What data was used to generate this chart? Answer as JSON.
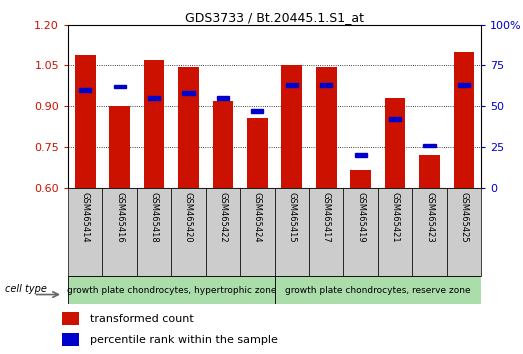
{
  "title": "GDS3733 / Bt.20445.1.S1_at",
  "samples": [
    "GSM465414",
    "GSM465416",
    "GSM465418",
    "GSM465420",
    "GSM465422",
    "GSM465424",
    "GSM465415",
    "GSM465417",
    "GSM465419",
    "GSM465421",
    "GSM465423",
    "GSM465425"
  ],
  "transformed_counts": [
    1.09,
    0.9,
    1.07,
    1.045,
    0.92,
    0.855,
    1.05,
    1.046,
    0.665,
    0.93,
    0.72,
    1.1
  ],
  "percentile_ranks": [
    60,
    62,
    55,
    58,
    55,
    47,
    63,
    63,
    20,
    42,
    26,
    63
  ],
  "bar_color": "#cc1100",
  "square_color": "#0000cc",
  "ylim_left": [
    0.6,
    1.2
  ],
  "ylim_right": [
    0,
    100
  ],
  "yticks_left": [
    0.6,
    0.75,
    0.9,
    1.05,
    1.2
  ],
  "yticks_right": [
    0,
    25,
    50,
    75,
    100
  ],
  "group1_label": "growth plate chondrocytes, hypertrophic zone",
  "group2_label": "growth plate chondrocytes, reserve zone",
  "cell_type_label": "cell type",
  "legend1": "transformed count",
  "legend2": "percentile rank within the sample",
  "label_bg_color": "#cccccc",
  "group_bg_color": "#aaddaa",
  "bar_width": 0.6
}
